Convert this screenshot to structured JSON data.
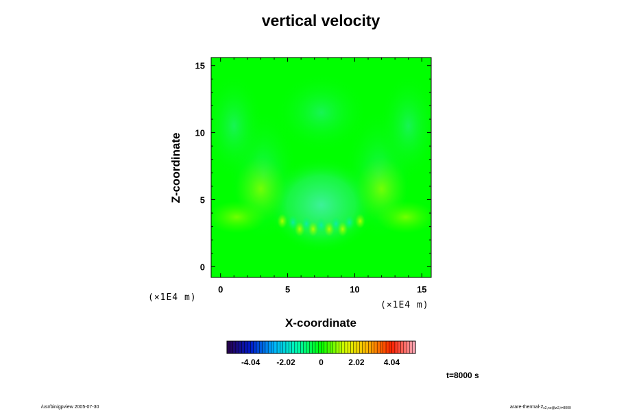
{
  "chart_data": {
    "type": "heatmap",
    "title": "vertical velocity",
    "xlabel": "X-coordinate",
    "ylabel": "Z-coordinate",
    "x_unit_label": "(×1E4 m)",
    "y_unit_label": "(×1E4 m)",
    "xlim": [
      -0.7,
      15.7
    ],
    "ylim": [
      -0.8,
      15.6
    ],
    "x_ticks": [
      0,
      5,
      10,
      15
    ],
    "y_ticks": [
      0,
      5,
      10,
      15
    ],
    "x_tick_labels": [
      "0",
      "5",
      "10",
      "15"
    ],
    "y_tick_labels": [
      "0",
      "5",
      "10",
      "15"
    ],
    "colorbar": {
      "min": -5.4,
      "max": 5.4,
      "tick_values": [
        -4.04,
        -2.02,
        0,
        2.02,
        4.04
      ],
      "tick_labels": [
        "-4.04",
        "-2.02",
        "0",
        "2.02",
        "4.04"
      ],
      "colors": [
        "#2a004a",
        "#0018c8",
        "#00b4ff",
        "#00ffb0",
        "#00ff00",
        "#d8ff00",
        "#ffb000",
        "#ff2000",
        "#ffb0c0"
      ]
    },
    "field_description_values": {
      "background_value": 0.0,
      "features": [
        {
          "x": 7.5,
          "z": 4.6,
          "value": -0.45
        },
        {
          "x": 3.2,
          "z": 5.6,
          "value": 0.35
        },
        {
          "x": 11.8,
          "z": 5.6,
          "value": 0.35
        },
        {
          "x": 1.5,
          "z": 4.0,
          "value": -0.3
        },
        {
          "x": 13.5,
          "z": 4.0,
          "value": -0.3
        },
        {
          "x": 0.8,
          "z": 10.5,
          "value": 0.2
        },
        {
          "x": 14.2,
          "z": 10.5,
          "value": 0.2
        },
        {
          "x": 5.5,
          "z": 3.0,
          "value": 0.5
        },
        {
          "x": 9.5,
          "z": 3.0,
          "value": 0.5
        },
        {
          "x": 7.5,
          "z": 2.8,
          "value": 0.45
        }
      ]
    },
    "time_label": "t=8000 s"
  },
  "footer": {
    "left_text": "/usr/bin/gpview 2005-07-30",
    "right_text": "arare-thermal-2",
    "right_subscript": "x2,no@w2,t=8000"
  }
}
